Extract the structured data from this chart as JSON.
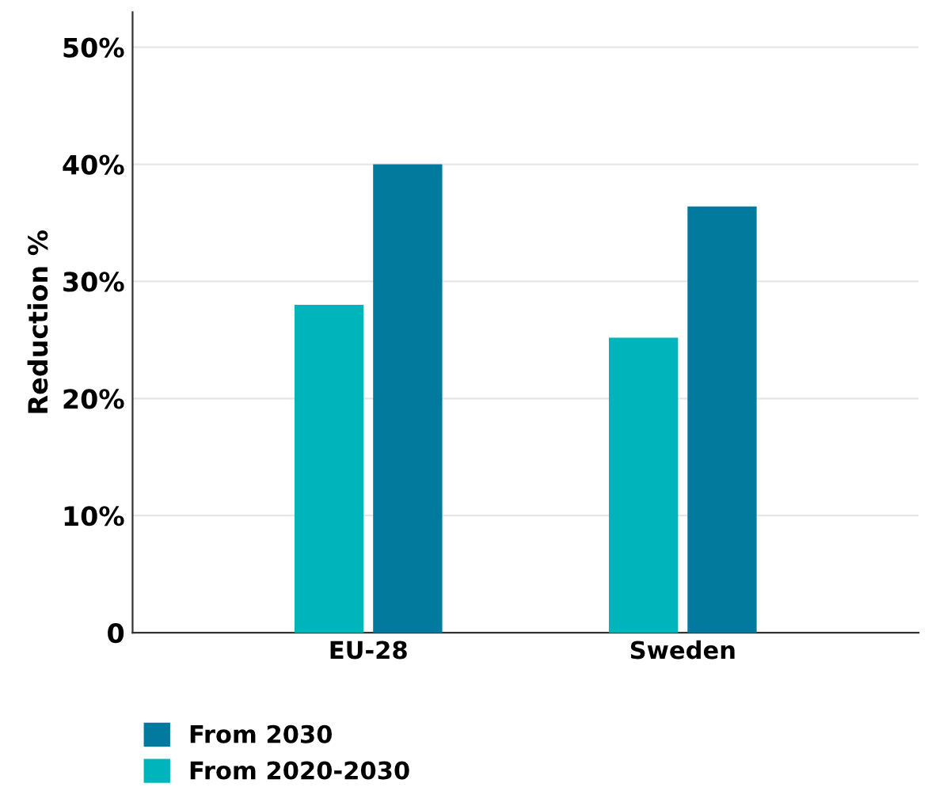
{
  "chart_data": {
    "type": "bar",
    "ylabel": "Reduction %",
    "categories": [
      "EU-28",
      "Sweden"
    ],
    "series": [
      {
        "name": "From 2020-2030",
        "color": "#00b4bc",
        "values": [
          28,
          25.2
        ]
      },
      {
        "name": "From 2030",
        "color": "#027a9e",
        "values": [
          40,
          36.4
        ]
      }
    ],
    "ylim": [
      0,
      53
    ],
    "yticks": [
      {
        "value": 0,
        "label": "0"
      },
      {
        "value": 10,
        "label": "10%"
      },
      {
        "value": 20,
        "label": "20%"
      },
      {
        "value": 30,
        "label": "30%"
      },
      {
        "value": 40,
        "label": "40%"
      },
      {
        "value": 50,
        "label": "50%"
      }
    ],
    "grid": "y",
    "legend": "bottom left"
  }
}
